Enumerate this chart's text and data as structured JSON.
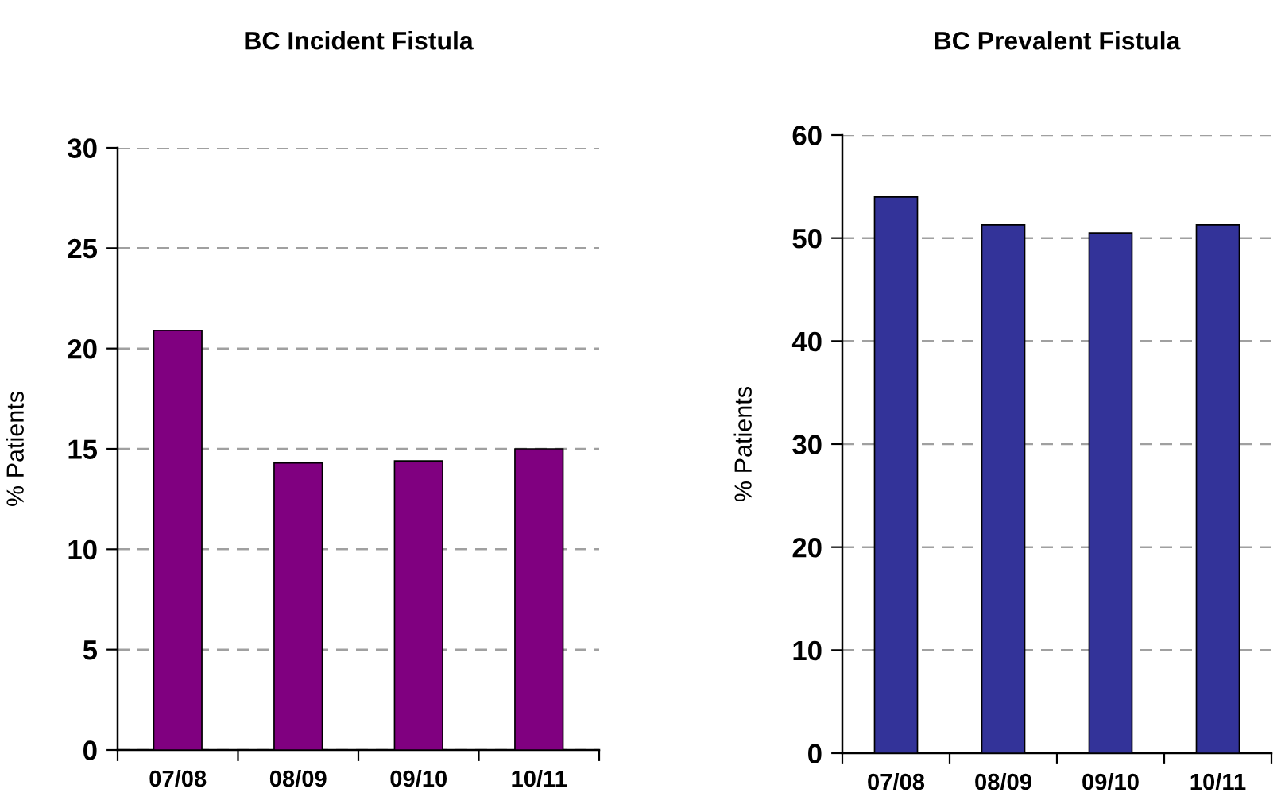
{
  "chart_data": [
    {
      "type": "bar",
      "title": "BC Incident Fistula",
      "ylabel": "% Patients",
      "categories": [
        "07/08",
        "08/09",
        "09/10",
        "10/11"
      ],
      "values": [
        20.9,
        14.3,
        14.4,
        15.0
      ],
      "color": "#800080",
      "ylim": [
        0,
        30
      ],
      "yticks": [
        0,
        5,
        10,
        15,
        20,
        25,
        30
      ],
      "grid": "y"
    },
    {
      "type": "bar",
      "title": "BC Prevalent Fistula",
      "ylabel": "% Patients",
      "categories": [
        "07/08",
        "08/09",
        "09/10",
        "10/11"
      ],
      "values": [
        54.0,
        51.3,
        50.5,
        51.3
      ],
      "color": "#333399",
      "ylim": [
        0,
        60
      ],
      "yticks": [
        0,
        10,
        20,
        30,
        40,
        50,
        60
      ],
      "grid": "y"
    }
  ]
}
